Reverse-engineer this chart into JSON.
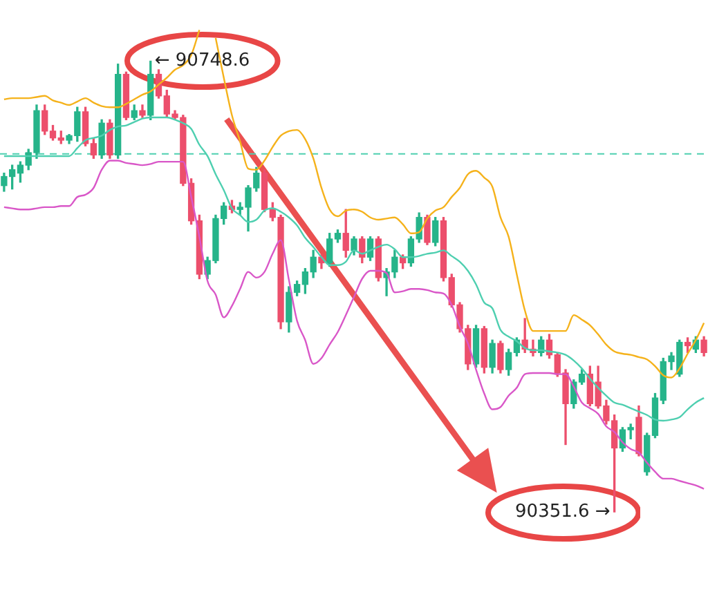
{
  "chart_data": {
    "type": "candlestick",
    "tick_labels": false,
    "categories": [
      null,
      null,
      null,
      null,
      null,
      null,
      null,
      null,
      null,
      null,
      null,
      null,
      null,
      null,
      null,
      null,
      null,
      null,
      null,
      null,
      null,
      null,
      null,
      null,
      null,
      null,
      null,
      null,
      null,
      null,
      null,
      null,
      null,
      null,
      null,
      null,
      null,
      null,
      null,
      null,
      null,
      null,
      null,
      null,
      null,
      null,
      null,
      null,
      null,
      null,
      null,
      null,
      null,
      null,
      null,
      null,
      null,
      null,
      null,
      null,
      null,
      null,
      null,
      null,
      null,
      null,
      null,
      null,
      null,
      null,
      null,
      null,
      null,
      null,
      null,
      null,
      null,
      null,
      null,
      null,
      null,
      null,
      null,
      null,
      null,
      null,
      null
    ],
    "ohlc": [
      [
        90639,
        90650,
        90634,
        90647
      ],
      [
        90647,
        90657,
        90636,
        90653
      ],
      [
        90650,
        90660,
        90642,
        90657
      ],
      [
        90657,
        90671,
        90653,
        90668
      ],
      [
        90668,
        90710,
        90663,
        90705
      ],
      [
        90705,
        90710,
        90684,
        90687
      ],
      [
        90687,
        90692,
        90679,
        90681
      ],
      [
        90681,
        90687,
        90676,
        90679
      ],
      [
        90679,
        90684,
        90676,
        90683
      ],
      [
        90683,
        90708,
        90678,
        90704
      ],
      [
        90704,
        90708,
        90674,
        90676
      ],
      [
        90676,
        90681,
        90663,
        90666
      ],
      [
        90666,
        90697,
        90663,
        90694
      ],
      [
        90694,
        90697,
        90663,
        90666
      ],
      [
        90666,
        90746,
        90663,
        90737
      ],
      [
        90737,
        90739,
        90697,
        90699
      ],
      [
        90699,
        90710,
        90697,
        90705
      ],
      [
        90705,
        90710,
        90699,
        90701
      ],
      [
        90701,
        90748.6,
        90697,
        90737
      ],
      [
        90737,
        90741,
        90716,
        90718
      ],
      [
        90718,
        90723,
        90700,
        90702
      ],
      [
        90702,
        90705,
        90697,
        90699
      ],
      [
        90699,
        90701,
        90639,
        90641
      ],
      [
        90641,
        90645,
        90605,
        90608
      ],
      [
        90608,
        90613,
        90557,
        90561
      ],
      [
        90561,
        90576,
        90557,
        90573
      ],
      [
        90573,
        90613,
        90571,
        90610
      ],
      [
        90610,
        90624,
        90605,
        90621
      ],
      [
        90621,
        90626,
        90615,
        90618
      ],
      [
        90618,
        90624,
        90613,
        90620
      ],
      [
        90620,
        90639,
        90599,
        90637
      ],
      [
        90637,
        90655,
        90634,
        90650
      ],
      [
        90650,
        90653,
        90616,
        90618
      ],
      [
        90618,
        90624,
        90608,
        90611
      ],
      [
        90611,
        90613,
        90513,
        90519
      ],
      [
        90519,
        90550,
        90510,
        90545
      ],
      [
        90545,
        90555,
        90542,
        90552
      ],
      [
        90552,
        90566,
        90544,
        90563
      ],
      [
        90563,
        90582,
        90558,
        90576
      ],
      [
        90576,
        90578,
        90566,
        90571
      ],
      [
        90571,
        90597,
        90568,
        90592
      ],
      [
        90592,
        90600,
        90589,
        90597
      ],
      [
        90597,
        90618,
        90576,
        90582
      ],
      [
        90582,
        90594,
        90578,
        90592
      ],
      [
        90592,
        90594,
        90571,
        90576
      ],
      [
        90576,
        90594,
        90573,
        90592
      ],
      [
        90592,
        90594,
        90555,
        90558
      ],
      [
        90558,
        90566,
        90542,
        90563
      ],
      [
        90563,
        90582,
        90558,
        90576
      ],
      [
        90576,
        90578,
        90566,
        90571
      ],
      [
        90571,
        90594,
        90568,
        90592
      ],
      [
        90592,
        90615,
        90589,
        90611
      ],
      [
        90611,
        90613,
        90587,
        90589
      ],
      [
        90589,
        90611,
        90586,
        90608
      ],
      [
        90608,
        90611,
        90555,
        90558
      ],
      [
        90558,
        90561,
        90532,
        90534
      ],
      [
        90534,
        90536,
        90510,
        90513
      ],
      [
        90513,
        90516,
        90477,
        90482
      ],
      [
        90482,
        90516,
        90479,
        90513
      ],
      [
        90513,
        90515,
        90474,
        90479
      ],
      [
        90479,
        90503,
        90474,
        90500
      ],
      [
        90500,
        90502,
        90474,
        90477
      ],
      [
        90477,
        90495,
        90472,
        90492
      ],
      [
        90492,
        90505,
        90489,
        90503
      ],
      [
        90503,
        90522,
        90492,
        90495
      ],
      [
        90495,
        90503,
        90489,
        90492
      ],
      [
        90492,
        90506,
        90489,
        90503
      ],
      [
        90503,
        90508,
        90487,
        90490
      ],
      [
        90490,
        90492,
        90471,
        90474
      ],
      [
        90474,
        90477,
        90411,
        90447
      ],
      [
        90447,
        90468,
        90443,
        90466
      ],
      [
        90466,
        90477,
        90464,
        90473
      ],
      [
        90473,
        90480,
        90445,
        90447
      ],
      [
        90466,
        90480,
        90443,
        90445
      ],
      [
        90445,
        90450,
        90429,
        90432
      ],
      [
        90432,
        90437,
        90351.6,
        90408
      ],
      [
        90408,
        90426,
        90405,
        90424
      ],
      [
        90424,
        90429,
        90416,
        90426
      ],
      [
        90435,
        90445,
        90401,
        90403
      ],
      [
        90387,
        90421,
        90384,
        90419
      ],
      [
        90419,
        90456,
        90417,
        90452
      ],
      [
        90450,
        90487,
        90447,
        90484
      ],
      [
        90484,
        90492,
        90477,
        90489
      ],
      [
        90473,
        90503,
        90471,
        90501
      ],
      [
        90501,
        90505,
        90492,
        90498
      ],
      [
        90495,
        90506,
        90492,
        90503
      ],
      [
        90503,
        90506,
        90489,
        90492
      ]
    ],
    "colors": [
      "#26b48a",
      "#26b48a",
      "#26b48a",
      "#26b48a",
      "#26b48a",
      "#ec4f6c",
      "#ec4f6c",
      "#ec4f6c",
      "#26b48a",
      "#26b48a",
      "#ec4f6c",
      "#ec4f6c",
      "#26b48a",
      "#ec4f6c",
      "#26b48a",
      "#ec4f6c",
      "#26b48a",
      "#ec4f6c",
      "#26b48a",
      "#ec4f6c",
      "#ec4f6c",
      "#ec4f6c",
      "#ec4f6c",
      "#ec4f6c",
      "#ec4f6c",
      "#26b48a",
      "#26b48a",
      "#26b48a",
      "#ec4f6c",
      "#26b48a",
      "#26b48a",
      "#26b48a",
      "#ec4f6c",
      "#ec4f6c",
      "#ec4f6c",
      "#26b48a",
      "#26b48a",
      "#26b48a",
      "#26b48a",
      "#ec4f6c",
      "#26b48a",
      "#26b48a",
      "#ec4f6c",
      "#26b48a",
      "#ec4f6c",
      "#26b48a",
      "#ec4f6c",
      "#26b48a",
      "#26b48a",
      "#ec4f6c",
      "#26b48a",
      "#26b48a",
      "#ec4f6c",
      "#26b48a",
      "#ec4f6c",
      "#ec4f6c",
      "#ec4f6c",
      "#ec4f6c",
      "#26b48a",
      "#ec4f6c",
      "#26b48a",
      "#ec4f6c",
      "#26b48a",
      "#26b48a",
      "#ec4f6c",
      "#ec4f6c",
      "#26b48a",
      "#ec4f6c",
      "#ec4f6c",
      "#ec4f6c",
      "#26b48a",
      "#26b48a",
      "#ec4f6c",
      "#ec4f6c",
      "#ec4f6c",
      "#ec4f6c",
      "#26b48a",
      "#26b48a",
      "#ec4f6c",
      "#26b48a",
      "#26b48a",
      "#26b48a",
      "#26b48a",
      "#26b48a",
      "#ec4f6c",
      "#26b48a",
      "#ec4f6c"
    ],
    "series": [
      {
        "type": "line",
        "color": "#f5b21b",
        "values": [
          90715,
          90716,
          90716,
          90716,
          90717,
          90718,
          90714,
          90712,
          90710,
          90713,
          90716,
          90712,
          90709,
          90708,
          90708,
          90711,
          90715,
          90719,
          90722,
          90728,
          90734,
          90741,
          90745,
          90754,
          90776,
          null,
          90769,
          90734,
          90701,
          90678,
          90654,
          90653,
          90661,
          90673,
          90683,
          90687,
          90688,
          90680,
          90663,
          90637,
          90618,
          90612,
          90617,
          90618,
          90616,
          90611,
          90609,
          90610,
          90611,
          90605,
          90597,
          90598,
          90610,
          90617,
          90620,
          90629,
          90637,
          90649,
          90652,
          90646,
          90638,
          90611,
          90594,
          90561,
          90529,
          90511,
          90511,
          90511,
          90511,
          90511,
          90525,
          90521,
          90516,
          90508,
          90499,
          90493,
          90491,
          90490,
          90488,
          90486,
          90480,
          90472,
          90470,
          90478,
          90491,
          90503,
          90518
        ]
      },
      {
        "type": "line",
        "color": "#4ecfb0",
        "values": [
          90665,
          90665,
          90665,
          90665,
          90665,
          90665,
          90665,
          90665,
          90665,
          90672,
          90679,
          90681,
          90683,
          90688,
          90691,
          90692,
          90695,
          90698,
          90699,
          90699,
          90699,
          90697,
          90694,
          90689,
          90675,
          90665,
          90649,
          90635,
          90619,
          90613,
          90607,
          90609,
          90617,
          90619,
          90616,
          90611,
          90604,
          90593,
          90585,
          90576,
          90569,
          90569,
          90572,
          90582,
          90579,
          90582,
          90585,
          90587,
          90583,
          90576,
          90576,
          90577,
          90579,
          90580,
          90582,
          90577,
          90572,
          90564,
          90552,
          90536,
          90531,
          90512,
          90506,
          90502,
          90496,
          90494,
          90494,
          90493,
          90492,
          90490,
          90485,
          90478,
          90469,
          90461,
          90454,
          90448,
          90446,
          90443,
          90440,
          90437,
          90433,
          90432,
          90433,
          90435,
          90442,
          90448,
          90452
        ]
      },
      {
        "type": "line",
        "color": "#d957c8",
        "values": [
          90620,
          90619,
          90618,
          90618,
          90619,
          90620,
          90620,
          90621,
          90621,
          90629,
          90631,
          90637,
          90653,
          90661,
          90661,
          90659,
          90658,
          90657,
          90658,
          90660,
          90660,
          90660,
          90660,
          90629,
          90594,
          90555,
          90543,
          90523,
          90533,
          90548,
          90563,
          90558,
          90563,
          90579,
          90591,
          90556,
          90520,
          90503,
          90482,
          90487,
          90499,
          90510,
          90525,
          90541,
          90557,
          90564,
          90564,
          90562,
          90545,
          90546,
          90548,
          90548,
          90547,
          90545,
          90544,
          90534,
          90515,
          90500,
          90477,
          90456,
          90442,
          90444,
          90454,
          90461,
          90473,
          90474,
          90474,
          90474,
          90473,
          90473,
          90462,
          90448,
          90443,
          90438,
          90427,
          90422,
          90413,
          90407,
          90404,
          90395,
          90387,
          90381,
          90381,
          90379,
          90377,
          90375,
          90372
        ]
      }
    ],
    "ref_lines": [
      {
        "axis": "y",
        "value": 90667,
        "color": "#4ecfb0",
        "line_style": "dashed"
      }
    ],
    "annotations": [
      "← 90748.6",
      "90351.6 →"
    ]
  }
}
